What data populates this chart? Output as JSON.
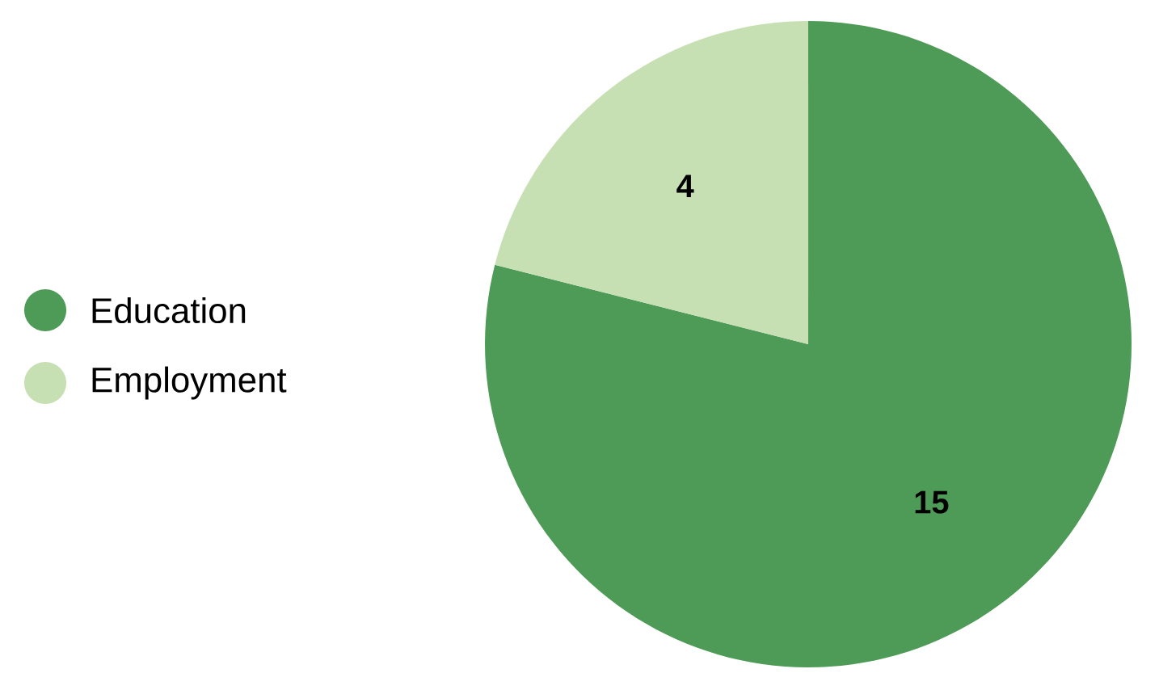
{
  "chart_data": {
    "type": "pie",
    "categories": [
      "Education",
      "Employment"
    ],
    "values": [
      15,
      4
    ],
    "colors": [
      "#4e9a57",
      "#c6e0b4"
    ],
    "data_labels": true,
    "legend": "left"
  }
}
